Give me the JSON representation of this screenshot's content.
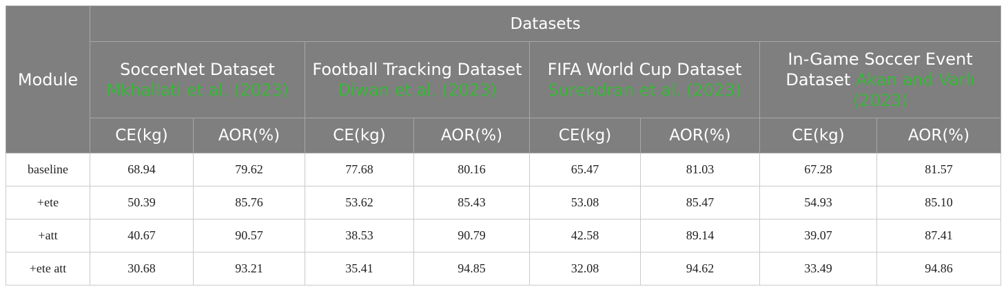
{
  "table": {
    "group_header": "Datasets",
    "module_header": "Module",
    "datasets": [
      {
        "name": "SoccerNet Dataset",
        "citation": "Mkhallati et al. (2023)"
      },
      {
        "name": "Football Tracking Dataset",
        "citation": "Diwan et al. (2023)"
      },
      {
        "name": "FIFA World Cup Dataset",
        "citation": "Surendran et al. (2023)"
      },
      {
        "name": "In-Game Soccer Event Dataset",
        "citation": "Akan and Varlı (2023)"
      }
    ],
    "metrics": [
      "CE(kg)",
      "AOR(%)"
    ],
    "rows": [
      {
        "module": "baseline",
        "values": [
          "68.94",
          "79.62",
          "77.68",
          "80.16",
          "65.47",
          "81.03",
          "67.28",
          "81.57"
        ]
      },
      {
        "module": "+ete",
        "values": [
          "50.39",
          "85.76",
          "53.62",
          "85.43",
          "53.08",
          "85.47",
          "54.93",
          "85.10"
        ]
      },
      {
        "module": "+att",
        "values": [
          "40.67",
          "90.57",
          "38.53",
          "90.79",
          "42.58",
          "89.14",
          "39.07",
          "87.41"
        ]
      },
      {
        "module": "+ete att",
        "values": [
          "30.68",
          "93.21",
          "35.41",
          "94.85",
          "32.08",
          "94.62",
          "33.49",
          "94.86"
        ]
      }
    ],
    "colors": {
      "header_bg": "#7f7f7f",
      "header_text": "#ffffff",
      "citation": "#3cb43c",
      "border": "#c9c9c9"
    }
  }
}
